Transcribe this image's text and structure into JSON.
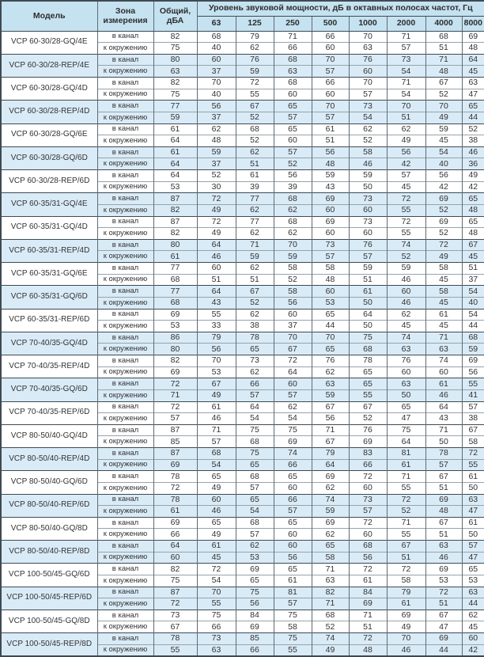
{
  "colors": {
    "header_bg": "#c5e2f1",
    "row_band_bg": "#d9ebf7",
    "border_dark": "#3f4a52",
    "text": "#333333"
  },
  "table": {
    "headers": {
      "model": "Модель",
      "zone": "Зона измерения",
      "total": "Общий, дБА",
      "spl_title": "Уровень звуковой мощности, дБ в октавных полосах частот, Гц",
      "frequencies": [
        "63",
        "125",
        "250",
        "500",
        "1000",
        "2000",
        "4000",
        "8000"
      ]
    },
    "zone_labels": {
      "duct": "в канал",
      "ambient": "к окружению"
    },
    "rows": [
      {
        "model": "VCP 60-30/28-GQ/4E",
        "shaded": false,
        "duct": {
          "total": "82",
          "bands": [
            "68",
            "79",
            "71",
            "66",
            "70",
            "71",
            "68",
            "69"
          ]
        },
        "ambient": {
          "total": "75",
          "bands": [
            "40",
            "62",
            "66",
            "60",
            "63",
            "57",
            "51",
            "48"
          ]
        }
      },
      {
        "model": "VCP 60-30/28-REP/4E",
        "shaded": true,
        "duct": {
          "total": "80",
          "bands": [
            "60",
            "76",
            "68",
            "70",
            "76",
            "73",
            "71",
            "64"
          ]
        },
        "ambient": {
          "total": "63",
          "bands": [
            "37",
            "59",
            "63",
            "57",
            "60",
            "54",
            "48",
            "45"
          ]
        }
      },
      {
        "model": "VCP 60-30/28-GQ/4D",
        "shaded": false,
        "duct": {
          "total": "82",
          "bands": [
            "70",
            "72",
            "68",
            "66",
            "70",
            "71",
            "67",
            "63"
          ]
        },
        "ambient": {
          "total": "75",
          "bands": [
            "40",
            "55",
            "60",
            "60",
            "57",
            "54",
            "52",
            "47"
          ]
        }
      },
      {
        "model": "VCP 60-30/28-REP/4D",
        "shaded": true,
        "duct": {
          "total": "77",
          "bands": [
            "56",
            "67",
            "65",
            "70",
            "73",
            "70",
            "70",
            "65"
          ]
        },
        "ambient": {
          "total": "59",
          "bands": [
            "37",
            "52",
            "57",
            "57",
            "54",
            "51",
            "49",
            "44"
          ]
        }
      },
      {
        "model": "VCP 60-30/28-GQ/6E",
        "shaded": false,
        "duct": {
          "total": "61",
          "bands": [
            "62",
            "68",
            "65",
            "61",
            "62",
            "62",
            "59",
            "52"
          ]
        },
        "ambient": {
          "total": "64",
          "bands": [
            "48",
            "52",
            "60",
            "51",
            "52",
            "49",
            "45",
            "38"
          ]
        }
      },
      {
        "model": "VCP 60-30/28-GQ/6D",
        "shaded": true,
        "duct": {
          "total": "61",
          "bands": [
            "59",
            "62",
            "57",
            "56",
            "58",
            "56",
            "54",
            "46"
          ]
        },
        "ambient": {
          "total": "64",
          "bands": [
            "37",
            "51",
            "52",
            "48",
            "46",
            "42",
            "40",
            "36"
          ]
        }
      },
      {
        "model": "VCP 60-30/28-REP/6D",
        "shaded": false,
        "duct": {
          "total": "64",
          "bands": [
            "52",
            "61",
            "56",
            "59",
            "59",
            "57",
            "56",
            "49"
          ]
        },
        "ambient": {
          "total": "53",
          "bands": [
            "30",
            "39",
            "39",
            "43",
            "50",
            "45",
            "42",
            "42"
          ]
        }
      },
      {
        "model": "VCP 60-35/31-GQ/4E",
        "shaded": true,
        "duct": {
          "total": "87",
          "bands": [
            "72",
            "77",
            "68",
            "69",
            "73",
            "72",
            "69",
            "65"
          ]
        },
        "ambient": {
          "total": "82",
          "bands": [
            "49",
            "62",
            "62",
            "60",
            "60",
            "55",
            "52",
            "48"
          ]
        }
      },
      {
        "model": "VCP 60-35/31-GQ/4D",
        "shaded": false,
        "duct": {
          "total": "87",
          "bands": [
            "72",
            "77",
            "68",
            "69",
            "73",
            "72",
            "69",
            "65"
          ]
        },
        "ambient": {
          "total": "82",
          "bands": [
            "49",
            "62",
            "62",
            "60",
            "60",
            "55",
            "52",
            "48"
          ]
        }
      },
      {
        "model": "VCP 60-35/31-REP/4D",
        "shaded": true,
        "duct": {
          "total": "80",
          "bands": [
            "64",
            "71",
            "70",
            "73",
            "76",
            "74",
            "72",
            "67"
          ]
        },
        "ambient": {
          "total": "61",
          "bands": [
            "46",
            "59",
            "59",
            "57",
            "57",
            "52",
            "49",
            "45"
          ]
        }
      },
      {
        "model": "VCP 60-35/31-GQ/6E",
        "shaded": false,
        "duct": {
          "total": "77",
          "bands": [
            "60",
            "62",
            "58",
            "58",
            "59",
            "59",
            "58",
            "51"
          ]
        },
        "ambient": {
          "total": "68",
          "bands": [
            "51",
            "51",
            "52",
            "48",
            "51",
            "46",
            "45",
            "37"
          ]
        }
      },
      {
        "model": "VCP 60-35/31-GQ/6D",
        "shaded": true,
        "duct": {
          "total": "77",
          "bands": [
            "64",
            "67",
            "58",
            "60",
            "61",
            "60",
            "58",
            "54"
          ]
        },
        "ambient": {
          "total": "68",
          "bands": [
            "43",
            "52",
            "56",
            "53",
            "50",
            "46",
            "45",
            "40"
          ]
        }
      },
      {
        "model": "VCP 60-35/31-REP/6D",
        "shaded": false,
        "duct": {
          "total": "69",
          "bands": [
            "55",
            "62",
            "60",
            "65",
            "64",
            "62",
            "61",
            "54"
          ]
        },
        "ambient": {
          "total": "53",
          "bands": [
            "33",
            "38",
            "37",
            "44",
            "50",
            "45",
            "45",
            "44"
          ]
        }
      },
      {
        "model": "VCP 70-40/35-GQ/4D",
        "shaded": true,
        "duct": {
          "total": "86",
          "bands": [
            "79",
            "78",
            "70",
            "70",
            "75",
            "74",
            "71",
            "68"
          ]
        },
        "ambient": {
          "total": "80",
          "bands": [
            "56",
            "65",
            "67",
            "65",
            "68",
            "63",
            "63",
            "59"
          ]
        }
      },
      {
        "model": "VCP 70-40/35-REP/4D",
        "shaded": false,
        "duct": {
          "total": "82",
          "bands": [
            "70",
            "73",
            "72",
            "76",
            "78",
            "76",
            "74",
            "69"
          ]
        },
        "ambient": {
          "total": "69",
          "bands": [
            "53",
            "62",
            "64",
            "62",
            "65",
            "60",
            "60",
            "56"
          ]
        }
      },
      {
        "model": "VCP 70-40/35-GQ/6D",
        "shaded": true,
        "duct": {
          "total": "72",
          "bands": [
            "67",
            "66",
            "60",
            "63",
            "65",
            "63",
            "61",
            "55"
          ]
        },
        "ambient": {
          "total": "71",
          "bands": [
            "49",
            "57",
            "57",
            "59",
            "55",
            "50",
            "46",
            "41"
          ]
        }
      },
      {
        "model": "VCP 70-40/35-REP/6D",
        "shaded": false,
        "duct": {
          "total": "72",
          "bands": [
            "61",
            "64",
            "62",
            "67",
            "67",
            "65",
            "64",
            "57"
          ]
        },
        "ambient": {
          "total": "57",
          "bands": [
            "46",
            "54",
            "54",
            "56",
            "52",
            "47",
            "43",
            "38"
          ]
        }
      },
      {
        "model": "VCP 80-50/40-GQ/4D",
        "shaded": false,
        "duct": {
          "total": "87",
          "bands": [
            "71",
            "75",
            "75",
            "71",
            "76",
            "75",
            "71",
            "67"
          ]
        },
        "ambient": {
          "total": "85",
          "bands": [
            "57",
            "68",
            "69",
            "67",
            "69",
            "64",
            "50",
            "58"
          ]
        }
      },
      {
        "model": "VCP 80-50/40-REP/4D",
        "shaded": true,
        "duct": {
          "total": "87",
          "bands": [
            "68",
            "75",
            "74",
            "79",
            "83",
            "81",
            "78",
            "72"
          ]
        },
        "ambient": {
          "total": "69",
          "bands": [
            "54",
            "65",
            "66",
            "64",
            "66",
            "61",
            "57",
            "55"
          ]
        }
      },
      {
        "model": "VCP 80-50/40-GQ/6D",
        "shaded": false,
        "duct": {
          "total": "78",
          "bands": [
            "65",
            "68",
            "65",
            "69",
            "72",
            "71",
            "67",
            "61"
          ]
        },
        "ambient": {
          "total": "72",
          "bands": [
            "49",
            "57",
            "60",
            "62",
            "60",
            "55",
            "51",
            "50"
          ]
        }
      },
      {
        "model": "VCP 80-50/40-REP/6D",
        "shaded": true,
        "duct": {
          "total": "78",
          "bands": [
            "60",
            "65",
            "66",
            "74",
            "73",
            "72",
            "69",
            "63"
          ]
        },
        "ambient": {
          "total": "61",
          "bands": [
            "46",
            "54",
            "57",
            "59",
            "57",
            "52",
            "48",
            "47"
          ]
        }
      },
      {
        "model": "VCP 80-50/40-GQ/8D",
        "shaded": false,
        "duct": {
          "total": "69",
          "bands": [
            "65",
            "68",
            "65",
            "69",
            "72",
            "71",
            "67",
            "61"
          ]
        },
        "ambient": {
          "total": "66",
          "bands": [
            "49",
            "57",
            "60",
            "62",
            "60",
            "55",
            "51",
            "50"
          ]
        }
      },
      {
        "model": "VCP 80-50/40-REP/8D",
        "shaded": true,
        "duct": {
          "total": "64",
          "bands": [
            "61",
            "62",
            "60",
            "65",
            "68",
            "67",
            "63",
            "57"
          ]
        },
        "ambient": {
          "total": "60",
          "bands": [
            "45",
            "53",
            "56",
            "58",
            "56",
            "51",
            "46",
            "47"
          ]
        }
      },
      {
        "model": "VCP 100-50/45-GQ/6D",
        "shaded": false,
        "duct": {
          "total": "82",
          "bands": [
            "72",
            "69",
            "65",
            "71",
            "72",
            "72",
            "69",
            "65"
          ]
        },
        "ambient": {
          "total": "75",
          "bands": [
            "54",
            "65",
            "61",
            "63",
            "61",
            "58",
            "53",
            "53"
          ]
        }
      },
      {
        "model": "VCP 100-50/45-REP/6D",
        "shaded": true,
        "duct": {
          "total": "87",
          "bands": [
            "70",
            "75",
            "81",
            "82",
            "84",
            "79",
            "72",
            "63"
          ]
        },
        "ambient": {
          "total": "72",
          "bands": [
            "55",
            "56",
            "57",
            "71",
            "69",
            "61",
            "51",
            "44"
          ]
        }
      },
      {
        "model": "VCP 100-50/45-GQ/8D",
        "shaded": false,
        "duct": {
          "total": "73",
          "bands": [
            "75",
            "84",
            "75",
            "68",
            "71",
            "69",
            "67",
            "62"
          ]
        },
        "ambient": {
          "total": "67",
          "bands": [
            "66",
            "69",
            "58",
            "52",
            "51",
            "49",
            "47",
            "45"
          ]
        }
      },
      {
        "model": "VCP 100-50/45-REP/8D",
        "shaded": true,
        "duct": {
          "total": "78",
          "bands": [
            "73",
            "85",
            "75",
            "74",
            "72",
            "70",
            "69",
            "60"
          ]
        },
        "ambient": {
          "total": "55",
          "bands": [
            "63",
            "66",
            "55",
            "49",
            "48",
            "46",
            "44",
            "42"
          ]
        }
      }
    ]
  }
}
